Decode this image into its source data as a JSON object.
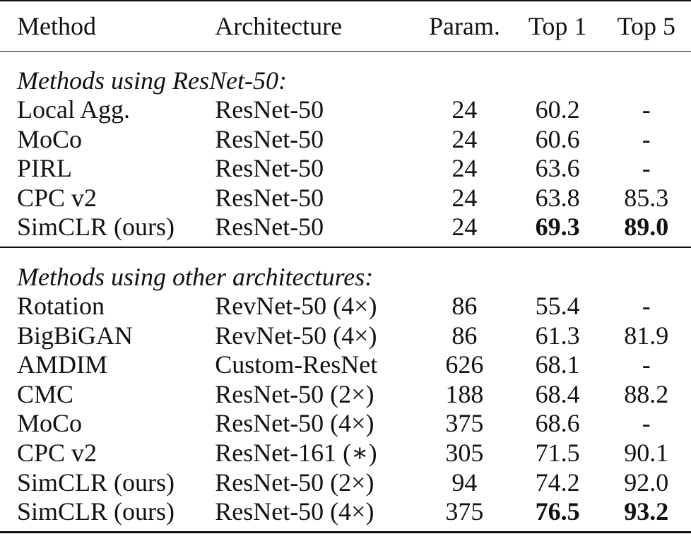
{
  "columns": [
    "Method",
    "Architecture",
    "Param.",
    "Top 1",
    "Top 5"
  ],
  "sections": [
    {
      "title": "Methods using ResNet-50:",
      "rows": [
        {
          "method": "Local Agg.",
          "arch": "ResNet-50",
          "param": "24",
          "top1": "60.2",
          "top5": "-"
        },
        {
          "method": "MoCo",
          "arch": "ResNet-50",
          "param": "24",
          "top1": "60.6",
          "top5": "-"
        },
        {
          "method": "PIRL",
          "arch": "ResNet-50",
          "param": "24",
          "top1": "63.6",
          "top5": "-"
        },
        {
          "method": "CPC v2",
          "arch": "ResNet-50",
          "param": "24",
          "top1": "63.8",
          "top5": "85.3"
        },
        {
          "method": "SimCLR (ours)",
          "arch": "ResNet-50",
          "param": "24",
          "top1": "69.3",
          "top5": "89.0",
          "bold_top1": true,
          "bold_top5": true
        }
      ]
    },
    {
      "title": "Methods using other architectures:",
      "rows": [
        {
          "method": "Rotation",
          "arch": "RevNet-50 (4×)",
          "param": "86",
          "top1": "55.4",
          "top5": "-"
        },
        {
          "method": "BigBiGAN",
          "arch": "RevNet-50 (4×)",
          "param": "86",
          "top1": "61.3",
          "top5": "81.9"
        },
        {
          "method": "AMDIM",
          "arch": "Custom-ResNet",
          "param": "626",
          "top1": "68.1",
          "top5": "-"
        },
        {
          "method": "CMC",
          "arch": "ResNet-50 (2×)",
          "param": "188",
          "top1": "68.4",
          "top5": "88.2"
        },
        {
          "method": "MoCo",
          "arch": "ResNet-50 (4×)",
          "param": "375",
          "top1": "68.6",
          "top5": "-"
        },
        {
          "method": "CPC v2",
          "arch": "ResNet-161 (∗)",
          "param": "305",
          "top1": "71.5",
          "top5": "90.1"
        },
        {
          "method": "SimCLR (ours)",
          "arch": "ResNet-50 (2×)",
          "param": "94",
          "top1": "74.2",
          "top5": "92.0"
        },
        {
          "method": "SimCLR (ours)",
          "arch": "ResNet-50 (4×)",
          "param": "375",
          "top1": "76.5",
          "top5": "93.2",
          "bold_top1": true,
          "bold_top5": true
        }
      ]
    }
  ]
}
